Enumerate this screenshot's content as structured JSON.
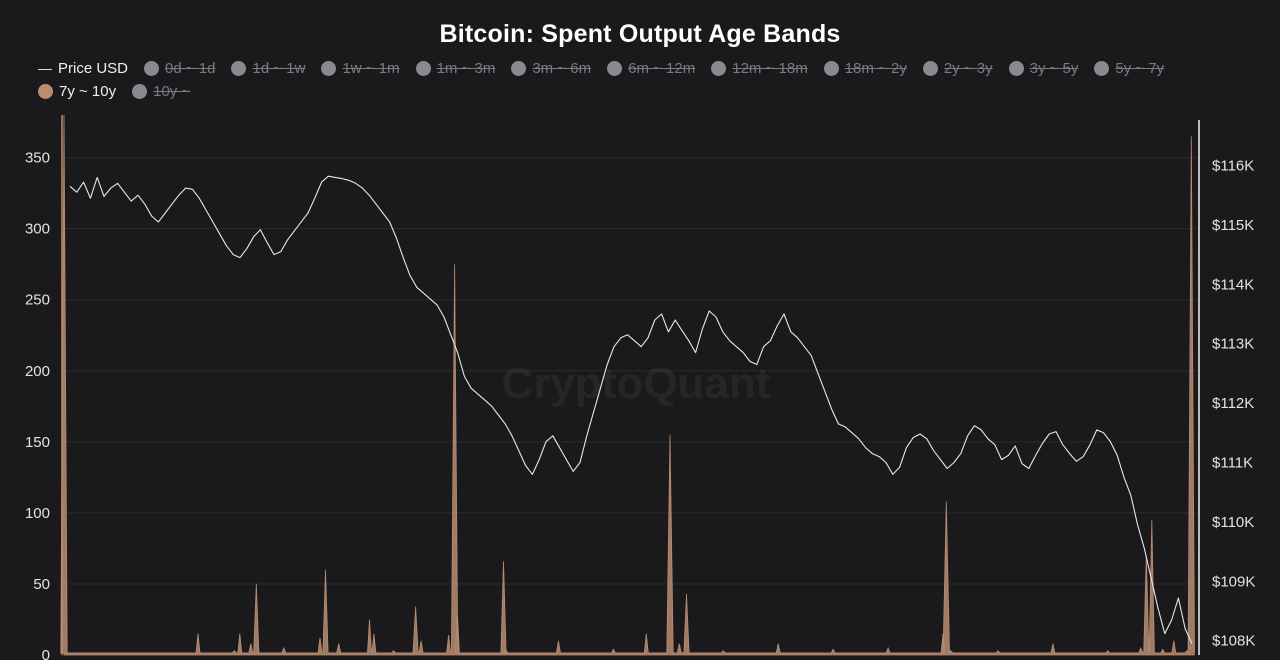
{
  "chart_data": {
    "type": "area",
    "title": "Bitcoin: Spent Output Age Bands",
    "watermark": "CryptoQuant",
    "legend": [
      {
        "label": "Price USD",
        "kind": "line",
        "active": true,
        "color": "#d9d9d9"
      },
      {
        "label": "0d ~ 1d",
        "kind": "dot",
        "active": false,
        "color": "#8a8a8e"
      },
      {
        "label": "1d ~ 1w",
        "kind": "dot",
        "active": false,
        "color": "#8a8a8e"
      },
      {
        "label": "1w ~ 1m",
        "kind": "dot",
        "active": false,
        "color": "#8a8a8e"
      },
      {
        "label": "1m ~ 3m",
        "kind": "dot",
        "active": false,
        "color": "#8a8a8e"
      },
      {
        "label": "3m ~ 6m",
        "kind": "dot",
        "active": false,
        "color": "#8a8a8e"
      },
      {
        "label": "6m ~ 12m",
        "kind": "dot",
        "active": false,
        "color": "#8a8a8e"
      },
      {
        "label": "12m ~ 18m",
        "kind": "dot",
        "active": false,
        "color": "#8a8a8e"
      },
      {
        "label": "18m ~ 2y",
        "kind": "dot",
        "active": false,
        "color": "#8a8a8e"
      },
      {
        "label": "2y ~ 3y",
        "kind": "dot",
        "active": false,
        "color": "#8a8a8e"
      },
      {
        "label": "3y ~ 5y",
        "kind": "dot",
        "active": false,
        "color": "#8a8a8e"
      },
      {
        "label": "5y ~ 7y",
        "kind": "dot",
        "active": false,
        "color": "#8a8a8e"
      },
      {
        "label": "7y ~ 10y",
        "kind": "dot",
        "active": true,
        "color": "#b98d72"
      },
      {
        "label": "10y ~",
        "kind": "dot",
        "active": false,
        "color": "#8a8a8e"
      }
    ],
    "y_left": {
      "ticks": [
        "0",
        "50",
        "100",
        "150",
        "200",
        "250",
        "300",
        "350"
      ],
      "range": [
        0,
        380
      ]
    },
    "y_right": {
      "ticks": [
        "$108K",
        "$109K",
        "$110K",
        "$111K",
        "$112K",
        "$113K",
        "$114K",
        "$115K",
        "$116K"
      ],
      "range": [
        107.76,
        116.85
      ],
      "unit": "K USD"
    },
    "grid": true,
    "series": [
      {
        "name": "7y ~ 10y",
        "axis": "left",
        "color": "#b98d72",
        "baseline": 1.5,
        "spikes": [
          [
            0.0,
            380
          ],
          [
            0.122,
            15
          ],
          [
            0.155,
            3
          ],
          [
            0.16,
            15
          ],
          [
            0.17,
            8
          ],
          [
            0.175,
            50
          ],
          [
            0.2,
            5
          ],
          [
            0.233,
            12
          ],
          [
            0.238,
            60
          ],
          [
            0.25,
            8
          ],
          [
            0.278,
            25
          ],
          [
            0.282,
            15
          ],
          [
            0.3,
            3
          ],
          [
            0.32,
            34
          ],
          [
            0.325,
            10
          ],
          [
            0.35,
            14
          ],
          [
            0.3555,
            275
          ],
          [
            0.358,
            30
          ],
          [
            0.4,
            66
          ],
          [
            0.402,
            4
          ],
          [
            0.45,
            10
          ],
          [
            0.5,
            4
          ],
          [
            0.53,
            15
          ],
          [
            0.5515,
            155
          ],
          [
            0.56,
            8
          ],
          [
            0.5665,
            43
          ],
          [
            0.6,
            3
          ],
          [
            0.65,
            8
          ],
          [
            0.7,
            4
          ],
          [
            0.75,
            5
          ],
          [
            0.8,
            15
          ],
          [
            0.803,
            108
          ],
          [
            0.807,
            3
          ],
          [
            0.85,
            3
          ],
          [
            0.9,
            8
          ],
          [
            0.95,
            3
          ],
          [
            0.98,
            5
          ],
          [
            0.985,
            70
          ],
          [
            0.99,
            95
          ],
          [
            1.0,
            4
          ],
          [
            1.01,
            10
          ],
          [
            1.022,
            3
          ],
          [
            1.026,
            365
          ]
        ]
      },
      {
        "name": "Price USD",
        "axis": "right",
        "color": "#e8e8e8",
        "values": [
          115.65,
          115.55,
          115.72,
          115.45,
          115.8,
          115.48,
          115.62,
          115.7,
          115.55,
          115.4,
          115.5,
          115.35,
          115.15,
          115.05,
          115.2,
          115.35,
          115.5,
          115.62,
          115.6,
          115.45,
          115.25,
          115.05,
          114.85,
          114.65,
          114.5,
          114.45,
          114.6,
          114.8,
          114.92,
          114.7,
          114.5,
          114.55,
          114.75,
          114.9,
          115.05,
          115.2,
          115.45,
          115.72,
          115.82,
          115.8,
          115.78,
          115.75,
          115.7,
          115.62,
          115.5,
          115.35,
          115.2,
          115.05,
          114.78,
          114.45,
          114.15,
          113.95,
          113.85,
          113.75,
          113.65,
          113.45,
          113.15,
          112.85,
          112.45,
          112.25,
          112.15,
          112.05,
          111.95,
          111.8,
          111.65,
          111.45,
          111.2,
          110.95,
          110.8,
          111.05,
          111.35,
          111.45,
          111.25,
          111.05,
          110.85,
          111.0,
          111.45,
          111.85,
          112.25,
          112.65,
          112.95,
          113.1,
          113.15,
          113.05,
          112.95,
          113.1,
          113.4,
          113.5,
          113.2,
          113.4,
          113.22,
          113.05,
          112.85,
          113.25,
          113.55,
          113.45,
          113.2,
          113.05,
          112.95,
          112.85,
          112.7,
          112.65,
          112.95,
          113.05,
          113.3,
          113.5,
          113.2,
          113.1,
          112.95,
          112.8,
          112.5,
          112.2,
          111.9,
          111.65,
          111.6,
          111.5,
          111.4,
          111.25,
          111.15,
          111.1,
          111.0,
          110.8,
          110.92,
          111.25,
          111.42,
          111.48,
          111.4,
          111.2,
          111.05,
          110.9,
          111.0,
          111.15,
          111.45,
          111.62,
          111.55,
          111.4,
          111.3,
          111.05,
          111.12,
          111.28,
          110.98,
          110.9,
          111.12,
          111.32,
          111.48,
          111.52,
          111.3,
          111.15,
          111.02,
          111.1,
          111.3,
          111.55,
          111.5,
          111.35,
          111.12,
          110.75,
          110.45,
          109.95,
          109.55,
          109.05,
          108.55,
          108.12,
          108.35,
          108.72,
          108.2,
          107.95
        ]
      }
    ]
  }
}
